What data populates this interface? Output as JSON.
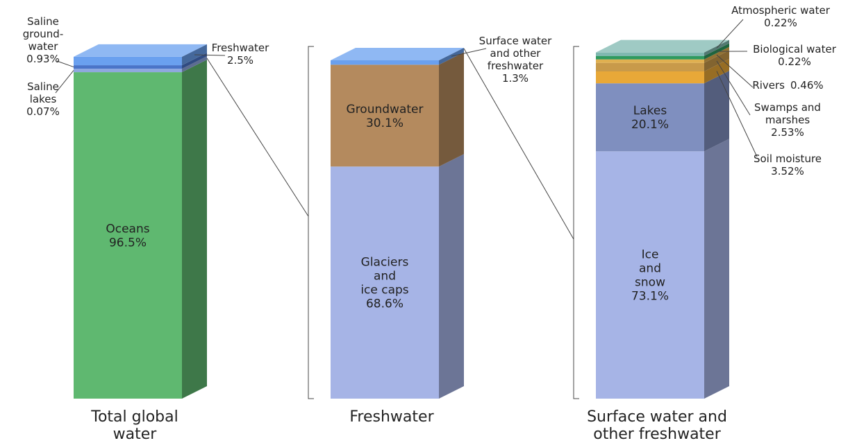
{
  "chart_data": {
    "type": "stacked-column-3d",
    "bars": [
      {
        "category": "Total global\nwater",
        "segments": [
          {
            "name": "Oceans",
            "value": 96.5,
            "value_label": "96.5%",
            "color": "#5fb870"
          },
          {
            "name": "Saline\nlakes",
            "value": 0.07,
            "value_label": "0.07%",
            "color": "#8fa8e0"
          },
          {
            "name": "Saline\nground-\nwater",
            "value": 0.93,
            "value_label": "0.93%",
            "color": "#4a74c8"
          },
          {
            "name": "Freshwater",
            "value": 2.5,
            "value_label": "2.5%",
            "color": "#6aa0ef"
          }
        ]
      },
      {
        "category": "Freshwater",
        "segments": [
          {
            "name": "Glaciers\nand\nice caps",
            "value": 68.6,
            "value_label": "68.6%",
            "color": "#a6b4e6"
          },
          {
            "name": "Groundwater",
            "value": 30.1,
            "value_label": "30.1%",
            "color": "#b48a5e"
          },
          {
            "name": "Surface water\nand other\nfreshwater",
            "value": 1.3,
            "value_label": "1.3%",
            "color": "#6aa0ef"
          }
        ]
      },
      {
        "category": "Surface water and\nother freshwater",
        "segments": [
          {
            "name": "Ice\nand\nsnow",
            "value": 73.1,
            "value_label": "73.1%",
            "color": "#a6b4e6"
          },
          {
            "name": "Lakes",
            "value": 20.1,
            "value_label": "20.1%",
            "color": "#7f8fbf"
          },
          {
            "name": "Soil moisture",
            "value": 3.52,
            "value_label": "3.52%",
            "color": "#e8a838"
          },
          {
            "name": "Swamps and\nmarshes",
            "value": 2.53,
            "value_label": "2.53%",
            "color": "#c89a4a"
          },
          {
            "name": "Rivers",
            "value": 0.46,
            "value_label": "0.46%",
            "color": "#e0b050"
          },
          {
            "name": "Biological water",
            "value": 0.22,
            "value_label": "0.22%",
            "color": "#2e9a60"
          },
          {
            "name": "Atmospheric water",
            "value": 0.22,
            "value_label": "0.22%",
            "color": "#7fb8b0"
          }
        ]
      }
    ]
  }
}
